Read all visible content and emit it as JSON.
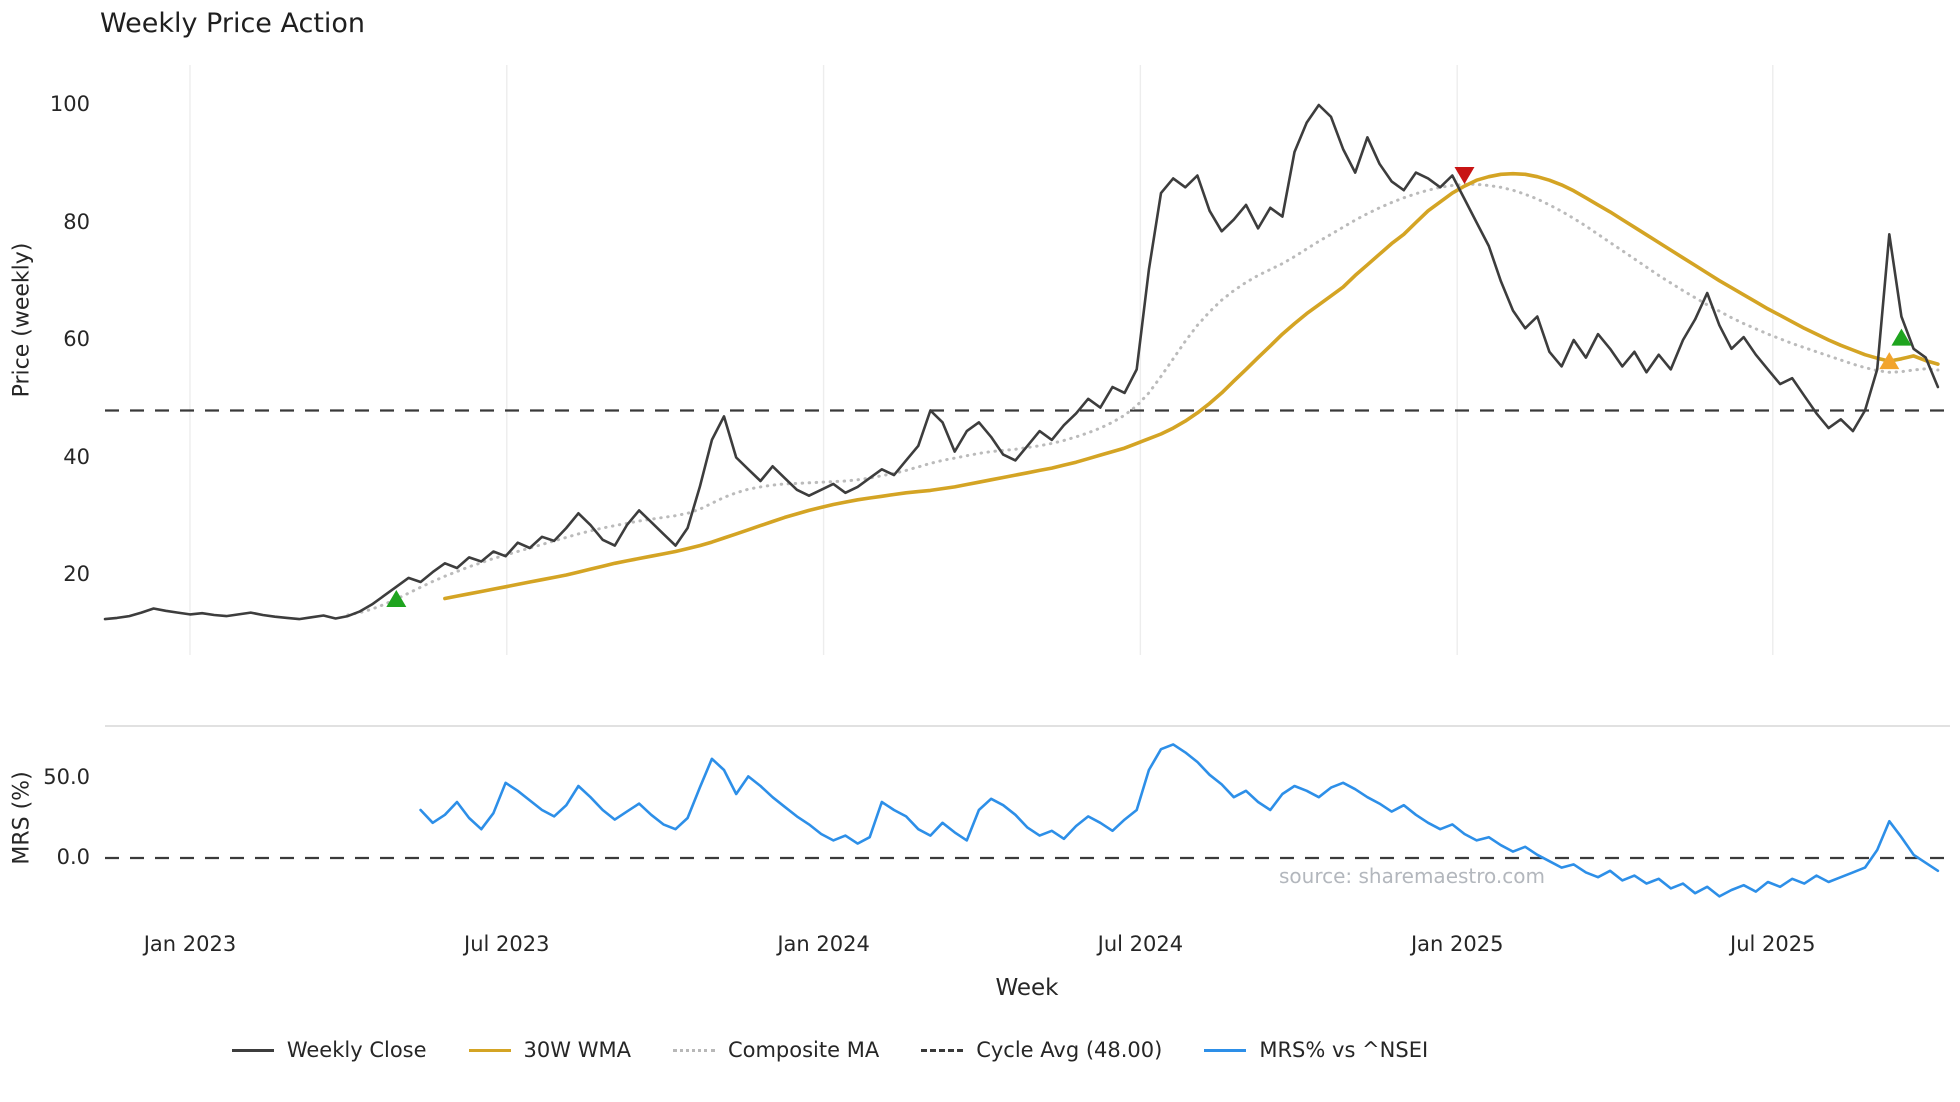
{
  "chart_data": {
    "type": "line",
    "title": "Weekly Price Action",
    "xlabel": "Week",
    "watermark": "source: sharemaestro.com",
    "x_domain_weeks": [
      0,
      152
    ],
    "x_ticks": [
      {
        "label": "Jan 2023",
        "week": 7
      },
      {
        "label": "Jul 2023",
        "week": 33.1
      },
      {
        "label": "Jan 2024",
        "week": 59.2
      },
      {
        "label": "Jul 2024",
        "week": 85.3
      },
      {
        "label": "Jan 2025",
        "week": 111.4
      },
      {
        "label": "Jul 2025",
        "week": 137.4
      }
    ],
    "panels": [
      {
        "name": "price",
        "ylabel": "Price (weekly)",
        "ylim": [
          5,
          105
        ],
        "yticks": [
          {
            "label": "20",
            "value": 20
          },
          {
            "label": "40",
            "value": 40
          },
          {
            "label": "60",
            "value": 60
          },
          {
            "label": "80",
            "value": 80
          },
          {
            "label": "100",
            "value": 100
          }
        ]
      },
      {
        "name": "mrs",
        "ylabel": "MRS (%)",
        "ylim": [
          -35,
          80
        ],
        "yticks": [
          {
            "label": "0.0",
            "value": 0
          },
          {
            "label": "50.0",
            "value": 50
          }
        ]
      }
    ],
    "series": [
      {
        "name": "Weekly Close",
        "panel": "price",
        "color": "#3d3d3d",
        "style": "solid",
        "start_week": 0,
        "values": [
          12.5,
          12.7,
          13.0,
          13.6,
          14.3,
          13.9,
          13.6,
          13.3,
          13.5,
          13.2,
          13.0,
          13.3,
          13.6,
          13.2,
          12.9,
          12.7,
          12.5,
          12.8,
          13.1,
          12.6,
          13.0,
          13.8,
          15.0,
          16.5,
          18.0,
          19.5,
          18.8,
          20.5,
          22.0,
          21.2,
          23.0,
          22.3,
          24.0,
          23.2,
          25.5,
          24.6,
          26.5,
          25.8,
          28.0,
          30.5,
          28.5,
          26.0,
          25.0,
          28.5,
          31.0,
          29.0,
          27.0,
          25.0,
          28.0,
          35.0,
          43.0,
          47.0,
          40.0,
          38.0,
          36.0,
          38.5,
          36.5,
          34.5,
          33.5,
          34.5,
          35.5,
          34.0,
          35.0,
          36.5,
          38.0,
          37.0,
          39.5,
          42.0,
          48.0,
          46.0,
          41.0,
          44.5,
          46.0,
          43.5,
          40.5,
          39.5,
          42.0,
          44.5,
          43.0,
          45.5,
          47.5,
          50.0,
          48.5,
          52.0,
          51.0,
          55.0,
          72.0,
          85.0,
          87.5,
          86.0,
          88.0,
          82.0,
          78.5,
          80.5,
          83.0,
          79.0,
          82.5,
          81.0,
          92.0,
          97.0,
          100.0,
          98.0,
          92.5,
          88.5,
          94.5,
          90.0,
          87.0,
          85.5,
          88.5,
          87.5,
          86.0,
          88.0,
          84.0,
          80.0,
          76.0,
          70.0,
          65.0,
          62.0,
          64.0,
          58.0,
          55.5,
          60.0,
          57.0,
          61.0,
          58.5,
          55.5,
          58.0,
          54.5,
          57.5,
          55.0,
          60.0,
          63.5,
          68.0,
          62.5,
          58.5,
          60.5,
          57.5,
          55.0,
          52.5,
          53.5,
          50.5,
          47.5,
          45.0,
          46.5,
          44.5,
          48.0,
          55.0,
          78.0,
          64.0,
          58.5,
          57.0,
          52.0
        ]
      },
      {
        "name": "30W WMA",
        "panel": "price",
        "color": "#d4a424",
        "style": "solid",
        "start_week": 28,
        "values": [
          16.0,
          16.4,
          16.8,
          17.2,
          17.6,
          18.0,
          18.4,
          18.8,
          19.2,
          19.6,
          20.0,
          20.5,
          21.0,
          21.5,
          22.0,
          22.4,
          22.8,
          23.2,
          23.6,
          24.0,
          24.5,
          25.0,
          25.6,
          26.3,
          27.0,
          27.7,
          28.4,
          29.1,
          29.8,
          30.4,
          31.0,
          31.5,
          32.0,
          32.4,
          32.8,
          33.1,
          33.4,
          33.7,
          34.0,
          34.2,
          34.4,
          34.7,
          35.0,
          35.4,
          35.8,
          36.2,
          36.6,
          37.0,
          37.4,
          37.8,
          38.2,
          38.7,
          39.2,
          39.8,
          40.4,
          41.0,
          41.6,
          42.4,
          43.2,
          44.0,
          45.0,
          46.2,
          47.6,
          49.2,
          51.0,
          53.0,
          55.0,
          57.0,
          59.0,
          61.0,
          62.8,
          64.5,
          66.0,
          67.5,
          69.0,
          71.0,
          72.8,
          74.6,
          76.4,
          78.0,
          80.0,
          82.0,
          83.5,
          85.0,
          86.2,
          87.2,
          87.8,
          88.2,
          88.3,
          88.2,
          87.8,
          87.2,
          86.4,
          85.4,
          84.2,
          83.0,
          81.8,
          80.5,
          79.2,
          77.9,
          76.6,
          75.3,
          74.0,
          72.7,
          71.4,
          70.1,
          68.9,
          67.7,
          66.5,
          65.3,
          64.2,
          63.1,
          62.0,
          61.0,
          60.0,
          59.1,
          58.3,
          57.5,
          56.9,
          56.4,
          56.8,
          57.3,
          56.5,
          55.9
        ]
      },
      {
        "name": "Composite MA",
        "panel": "price",
        "color": "#bbbbbb",
        "style": "dotted",
        "start_week": 20,
        "values": [
          13.2,
          13.6,
          14.2,
          15.0,
          15.9,
          16.9,
          17.9,
          18.9,
          19.8,
          20.6,
          21.4,
          22.1,
          22.8,
          23.4,
          24.0,
          24.6,
          25.2,
          25.8,
          26.4,
          27.0,
          27.5,
          28.0,
          28.4,
          28.8,
          29.2,
          29.5,
          29.8,
          30.1,
          30.5,
          31.2,
          32.2,
          33.2,
          34.0,
          34.6,
          35.0,
          35.3,
          35.5,
          35.6,
          35.7,
          35.8,
          35.9,
          36.0,
          36.2,
          36.5,
          36.9,
          37.3,
          37.8,
          38.4,
          39.0,
          39.5,
          39.9,
          40.3,
          40.7,
          41.0,
          41.2,
          41.4,
          41.7,
          42.0,
          42.4,
          42.9,
          43.5,
          44.2,
          45.0,
          46.0,
          47.2,
          48.8,
          51.0,
          53.8,
          56.8,
          59.8,
          62.5,
          64.8,
          66.8,
          68.4,
          69.8,
          71.0,
          72.0,
          73.0,
          74.2,
          75.5,
          76.8,
          78.0,
          79.2,
          80.4,
          81.5,
          82.5,
          83.4,
          84.2,
          84.9,
          85.5,
          86.0,
          86.3,
          86.5,
          86.5,
          86.3,
          86.0,
          85.5,
          84.8,
          84.0,
          83.0,
          81.9,
          80.7,
          79.4,
          78.0,
          76.6,
          75.2,
          73.8,
          72.4,
          71.0,
          69.7,
          68.4,
          67.2,
          66.0,
          64.9,
          63.8,
          62.8,
          61.9,
          61.0,
          60.2,
          59.4,
          58.7,
          58.0,
          57.3,
          56.6,
          55.9,
          55.3,
          54.8,
          54.5,
          54.6,
          54.9,
          55.1,
          54.9
        ]
      },
      {
        "name": "MRS% vs ^NSEI",
        "panel": "mrs",
        "color": "#2d8fe8",
        "style": "solid",
        "start_week": 26,
        "values": [
          30,
          22,
          27,
          35,
          25,
          18,
          28,
          47,
          42,
          36,
          30,
          26,
          33,
          45,
          38,
          30,
          24,
          29,
          34,
          27,
          21,
          18,
          25,
          44,
          62,
          55,
          40,
          51,
          45,
          38,
          32,
          26,
          21,
          15,
          11,
          14,
          9,
          13,
          35,
          30,
          26,
          18,
          14,
          22,
          16,
          11,
          30,
          37,
          33,
          27,
          19,
          14,
          17,
          12,
          20,
          26,
          22,
          17,
          24,
          30,
          55,
          68,
          71,
          66,
          60,
          52,
          46,
          38,
          42,
          35,
          30,
          40,
          45,
          42,
          38,
          44,
          47,
          43,
          38,
          34,
          29,
          33,
          27,
          22,
          18,
          21,
          15,
          11,
          13,
          8,
          4,
          7,
          2,
          -2,
          -6,
          -4,
          -9,
          -12,
          -8,
          -14,
          -11,
          -16,
          -13,
          -19,
          -16,
          -22,
          -18,
          -24,
          -20,
          -17,
          -21,
          -15,
          -18,
          -13,
          -16,
          -11,
          -15,
          -12,
          -9,
          -6,
          5,
          23,
          13,
          2,
          -3,
          -8
        ]
      }
    ],
    "reference_lines": [
      {
        "panel": "price",
        "value": 48.0,
        "style": "dashed",
        "color": "#3a3a3a"
      },
      {
        "panel": "mrs",
        "value": 0.0,
        "style": "dashed",
        "color": "#3a3a3a"
      }
    ],
    "signals": [
      {
        "type": "buy",
        "shape": "triangle-up",
        "color": "#1fa41f",
        "week": 24,
        "price": 16.0
      },
      {
        "type": "sell",
        "shape": "triangle-down",
        "color": "#c81414",
        "week": 112,
        "price": 88.0
      },
      {
        "type": "wma-touch",
        "shape": "triangle-up",
        "color": "#f2a42c",
        "week": 147,
        "price": 56.5
      },
      {
        "type": "buy",
        "shape": "triangle-up",
        "color": "#1fa41f",
        "week": 148,
        "price": 60.5
      }
    ],
    "legend": [
      {
        "label": "Weekly Close",
        "color": "#3d3d3d",
        "line": "solid"
      },
      {
        "label": "30W WMA",
        "color": "#d4a424",
        "line": "solid"
      },
      {
        "label": "Composite MA",
        "color": "#b8b8b8",
        "line": "dotted"
      },
      {
        "label": "Cycle Avg (48.00)",
        "color": "#3a3a3a",
        "line": "dashed"
      },
      {
        "label": "MRS% vs ^NSEI",
        "color": "#2d8fe8",
        "line": "solid"
      }
    ]
  }
}
